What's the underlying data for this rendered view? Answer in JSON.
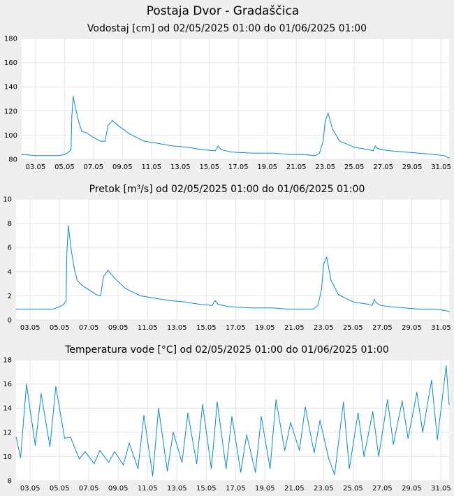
{
  "page_title": "Postaja Dvor - Gradaščica",
  "colors": {
    "background": "#efefef",
    "plot": "#ffffff",
    "line": "#0a8acb",
    "grid": "#e4e4e4"
  },
  "chart_data": [
    {
      "type": "line",
      "title": "Vodostaj [cm] od 02/05/2025 01:00 do 01/06/2025 01:00",
      "ylim": [
        80,
        180
      ],
      "yticks": [
        80,
        100,
        120,
        140,
        160,
        180
      ],
      "xlim": [
        2.04,
        31.55
      ],
      "xticks": [
        3,
        5,
        7,
        9,
        11,
        13,
        15,
        17,
        19,
        21,
        23,
        25,
        27,
        29,
        31
      ],
      "xtick_labels": [
        "03.05",
        "05.05",
        "07.05",
        "09.05",
        "11.05",
        "13.05",
        "15.05",
        "17.05",
        "19.05",
        "21.05",
        "23.05",
        "25.05",
        "27.05",
        "29.05",
        "31.05"
      ],
      "grid": true,
      "series": [
        {
          "x": [
            2.04,
            3.0,
            4.0,
            4.6,
            5.0,
            5.3,
            5.45,
            5.5,
            5.6,
            5.8,
            6.0,
            6.2,
            6.5,
            7.0,
            7.5,
            7.8,
            8.0,
            8.3,
            8.8,
            9.5,
            10.5,
            11.5,
            12.5,
            13.5,
            14.5,
            15.4,
            15.6,
            15.8,
            16.5,
            18.0,
            19.5,
            20.5,
            21.5,
            22.3,
            22.6,
            22.85,
            23.0,
            23.2,
            23.5,
            24.0,
            25.0,
            26.0,
            26.3,
            26.45,
            26.6,
            26.9,
            27.5,
            28.5,
            29.5,
            30.5,
            31.2,
            31.55
          ],
          "y": [
            84,
            83,
            83,
            83,
            84,
            86,
            88,
            115,
            132,
            120,
            110,
            103,
            102,
            98,
            95,
            95,
            108,
            112,
            107,
            101,
            95,
            93,
            91,
            90,
            88,
            87,
            91,
            88,
            86,
            85,
            85,
            84,
            84,
            83,
            85,
            95,
            112,
            118,
            105,
            95,
            90,
            88,
            87,
            91,
            89,
            88,
            87,
            86,
            85,
            84,
            83,
            81
          ]
        }
      ]
    },
    {
      "type": "line",
      "title": "Pretok [m³/s] od 02/05/2025 01:00 do 01/06/2025 01:00",
      "ylim": [
        0,
        10
      ],
      "yticks": [
        0,
        2,
        4,
        6,
        8,
        10
      ],
      "xlim": [
        2.04,
        31.55
      ],
      "xticks": [
        3,
        5,
        7,
        9,
        11,
        13,
        15,
        17,
        19,
        21,
        23,
        25,
        27,
        29,
        31
      ],
      "xtick_labels": [
        "03.05",
        "05.05",
        "07.05",
        "09.05",
        "11.05",
        "13.05",
        "15.05",
        "17.05",
        "19.05",
        "21.05",
        "23.05",
        "25.05",
        "27.05",
        "29.05",
        "31.05"
      ],
      "grid": true,
      "series": [
        {
          "x": [
            2.04,
            3.0,
            4.0,
            4.6,
            5.0,
            5.3,
            5.45,
            5.5,
            5.6,
            5.8,
            6.0,
            6.2,
            6.5,
            7.0,
            7.5,
            7.8,
            8.0,
            8.3,
            8.8,
            9.5,
            10.5,
            11.5,
            12.5,
            13.5,
            14.5,
            15.4,
            15.6,
            15.8,
            16.5,
            18.0,
            19.5,
            20.5,
            21.5,
            22.3,
            22.6,
            22.85,
            23.0,
            23.2,
            23.5,
            24.0,
            25.0,
            26.0,
            26.3,
            26.45,
            26.6,
            26.9,
            27.5,
            28.5,
            29.5,
            30.5,
            31.2,
            31.55
          ],
          "y": [
            0.9,
            0.9,
            0.9,
            0.9,
            1.1,
            1.3,
            1.6,
            5.5,
            7.8,
            5.8,
            4.3,
            3.3,
            2.9,
            2.5,
            2.1,
            2.0,
            3.6,
            4.1,
            3.4,
            2.6,
            2.0,
            1.8,
            1.6,
            1.5,
            1.3,
            1.2,
            1.6,
            1.3,
            1.1,
            1.0,
            1.0,
            0.9,
            0.9,
            0.9,
            1.2,
            2.5,
            4.6,
            5.2,
            3.3,
            2.1,
            1.5,
            1.3,
            1.2,
            1.7,
            1.4,
            1.2,
            1.1,
            1.0,
            0.9,
            0.9,
            0.8,
            0.7
          ]
        }
      ]
    },
    {
      "type": "line",
      "title": "Temperatura vode [°C] od 02/05/2025 01:00 do 01/06/2025 01:00",
      "ylim": [
        8,
        18
      ],
      "yticks": [
        8,
        10,
        12,
        14,
        16,
        18
      ],
      "xlim": [
        2.04,
        31.55
      ],
      "xticks": [
        3,
        5,
        7,
        9,
        11,
        13,
        15,
        17,
        19,
        21,
        23,
        25,
        27,
        29,
        31
      ],
      "xtick_labels": [
        "03.05",
        "05.05",
        "07.05",
        "09.05",
        "11.05",
        "13.05",
        "15.05",
        "17.05",
        "19.05",
        "21.05",
        "23.05",
        "25.05",
        "27.05",
        "29.05",
        "31.05"
      ],
      "grid": true,
      "series": [
        {
          "x": [
            2.04,
            2.35,
            2.75,
            3.35,
            3.75,
            4.35,
            4.75,
            5.35,
            5.75,
            6.35,
            6.75,
            7.35,
            7.75,
            8.35,
            8.75,
            9.35,
            9.75,
            10.35,
            10.75,
            11.35,
            11.75,
            12.35,
            12.75,
            13.35,
            13.75,
            14.35,
            14.75,
            15.35,
            15.75,
            16.35,
            16.75,
            17.35,
            17.75,
            18.35,
            18.75,
            19.35,
            19.75,
            20.35,
            20.75,
            21.35,
            21.75,
            22.35,
            22.75,
            23.35,
            23.75,
            24.35,
            24.75,
            25.35,
            25.75,
            26.35,
            26.75,
            27.35,
            27.75,
            28.35,
            28.75,
            29.35,
            29.75,
            30.35,
            30.75,
            31.35,
            31.55
          ],
          "y": [
            11.6,
            9.9,
            16.0,
            10.9,
            15.2,
            10.8,
            15.8,
            11.5,
            11.6,
            9.8,
            10.4,
            9.4,
            10.5,
            9.5,
            10.4,
            9.3,
            11.1,
            9.0,
            13.4,
            8.4,
            14.0,
            8.8,
            12.0,
            9.5,
            13.6,
            9.4,
            14.3,
            9.0,
            14.5,
            9.0,
            13.3,
            8.7,
            11.8,
            8.7,
            13.3,
            9.0,
            14.7,
            10.5,
            12.8,
            10.5,
            14.1,
            10.3,
            13.0,
            9.8,
            8.5,
            14.5,
            9.0,
            13.6,
            10.0,
            13.7,
            10.0,
            14.7,
            11.0,
            14.6,
            11.5,
            15.3,
            12.0,
            16.3,
            11.4,
            17.5,
            14.3
          ]
        }
      ]
    }
  ]
}
